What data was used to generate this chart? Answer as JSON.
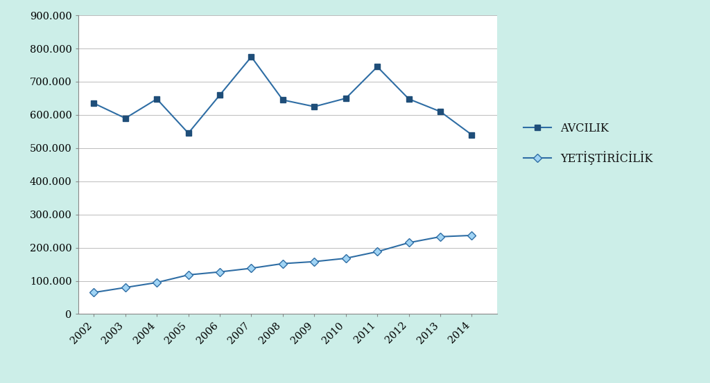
{
  "years": [
    2002,
    2003,
    2004,
    2005,
    2006,
    2007,
    2008,
    2009,
    2010,
    2011,
    2012,
    2013,
    2014
  ],
  "avcilik": [
    635000,
    590000,
    648000,
    545000,
    660000,
    775000,
    645000,
    625000,
    650000,
    745000,
    648000,
    610000,
    540000
  ],
  "yetishtiricilik": [
    65000,
    80000,
    95000,
    118000,
    127000,
    138000,
    152000,
    158000,
    168000,
    188000,
    215000,
    233000,
    237000
  ],
  "avcilik_color": "#1f4e79",
  "avcilik_line_color": "#2e6da4",
  "yetishtiricilik_color": "#a0d4f5",
  "yetishtiricilik_line_color": "#2e6da4",
  "background_color": "#cceee8",
  "plot_bg_color": "#ffffff",
  "grid_color": "#bbbbbb",
  "ylim": [
    0,
    900000
  ],
  "yticks": [
    0,
    100000,
    200000,
    300000,
    400000,
    500000,
    600000,
    700000,
    800000,
    900000
  ],
  "legend_avcilik": "AVCILIK",
  "legend_yetishtiricilik": "YETİŞTİRİCİLİK",
  "linewidth": 1.5,
  "markersize": 6,
  "tick_fontsize": 10.5,
  "legend_fontsize": 11.5
}
